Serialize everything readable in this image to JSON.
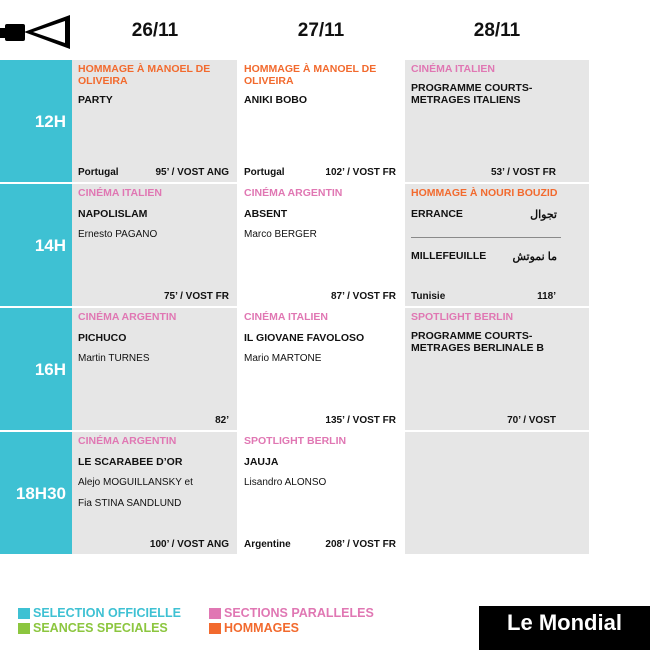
{
  "days": [
    "26/11",
    "27/11",
    "28/11"
  ],
  "times": [
    "12H",
    "14H",
    "16H",
    "18H30"
  ],
  "colors": {
    "cyan": "#3ec1d3",
    "pink": "#e077b3",
    "orange": "#f26a2e",
    "green": "#8cc63f",
    "cell_gray": "#e6e6e6"
  },
  "rows": [
    {
      "c1": {
        "category": "HOMMAGE À MANOEL DE OLIVEIRA",
        "title": "PARTY",
        "country": "Portugal",
        "duration": "95’ / VOST ANG"
      },
      "c2": {
        "category": "HOMMAGE À MANOEL  DE OLIVEIRA",
        "title": "ANIKI BOBO",
        "country": "Portugal",
        "duration": "102’ / VOST FR"
      },
      "c3": {
        "category": "CINÉMA ITALIEN",
        "title": "PROGRAMME COURTS-METRAGES ITALIENS",
        "duration": "53’ / VOST FR"
      }
    },
    {
      "c1": {
        "category": "CINÉMA ITALIEN",
        "title": "NAPOLISLAM",
        "director": "Ernesto PAGANO",
        "duration": "75’ / VOST FR"
      },
      "c2": {
        "category": "CINÉMA ARGENTIN",
        "title": "ABSENT",
        "director": "Marco BERGER",
        "duration": "87’ / VOST FR"
      },
      "c3": {
        "category": "HOMMAGE À NOURI BOUZID",
        "title": "ERRANCE",
        "arabic": "تجوال",
        "title2": "MILLEFEUILLE",
        "arabic2": "ما نموتش",
        "country": "Tunisie",
        "duration": "118’"
      }
    },
    {
      "c1": {
        "category": "CINÉMA ARGENTIN",
        "title": "PICHUCO",
        "director": "Martin TURNES",
        "duration": "82’"
      },
      "c2": {
        "category": "CINÉMA ITALIEN",
        "title": "IL GIOVANE FAVOLOSO",
        "director": "Mario MARTONE",
        "duration": "135’ / VOST FR"
      },
      "c3": {
        "category": "SPOTLIGHT BERLIN",
        "title": "PROGRAMME COURTS-METRAGES BERLINALE B",
        "duration": "70’ / VOST"
      }
    },
    {
      "c1": {
        "category": "CINÉMA ARGENTIN",
        "title": "LE SCARABEE D’OR",
        "director": "Alejo MOGUILLANSKY et",
        "director2": "Fia STINA SANDLUND",
        "duration": "100’ / VOST ANG"
      },
      "c2": {
        "category": "SPOTLIGHT BERLIN",
        "title": "JAUJA",
        "director": "Lisandro ALONSO",
        "country": "Argentine",
        "duration": "208’ / VOST FR"
      }
    }
  ],
  "legend": {
    "official": "SELECTION OFFICIELLE",
    "special": "SEANCES SPECIALES",
    "parallel": "SECTIONS PARALLELES",
    "tributes": "HOMMAGES"
  },
  "brand": "Le Mondial",
  "icons": {
    "header": "film-camera-icon"
  }
}
